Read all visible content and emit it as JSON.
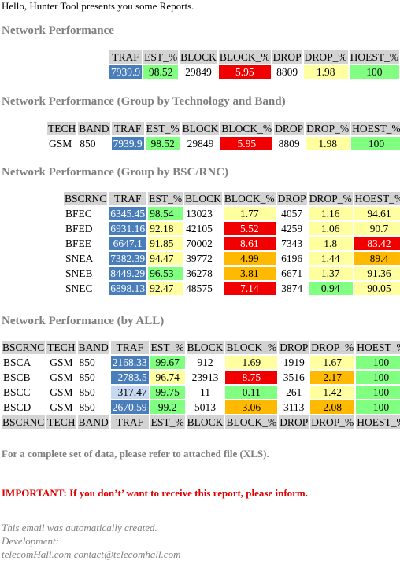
{
  "greeting": "Hello, Hunter Tool presents you some Reports.",
  "sections": {
    "s1": {
      "title": "Network Performance",
      "headers": [
        "TRAF",
        "EST_%",
        "BLOCK",
        "BLOCK_%",
        "DROP",
        "DROP_%",
        "HOEST_%"
      ],
      "row": [
        "7939.9",
        "98.52",
        "29849",
        "5.95",
        "8809",
        "1.98",
        "100"
      ]
    },
    "s2": {
      "title": "Network Performance (Group by Technology and Band)",
      "headers": [
        "TECH",
        "BAND",
        "TRAF",
        "EST_%",
        "BLOCK",
        "BLOCK_%",
        "DROP",
        "DROP_%",
        "HOEST_%"
      ],
      "row": [
        "GSM",
        "850",
        "7939.9",
        "98.52",
        "29849",
        "5.95",
        "8809",
        "1.98",
        "100"
      ]
    },
    "s3": {
      "title": "Network Performance (Group by BSC/RNC)",
      "headers": [
        "BSCRNC",
        "TRAF",
        "EST_%",
        "BLOCK",
        "BLOCK_%",
        "DROP",
        "DROP_%",
        "HOEST_%"
      ],
      "rows": [
        [
          "BFEC",
          "6345.45",
          "98.54",
          "13023",
          "1.77",
          "4057",
          "1.16",
          "94.61"
        ],
        [
          "BFED",
          "6931.16",
          "92.18",
          "42105",
          "5.52",
          "4259",
          "1.06",
          "90.7"
        ],
        [
          "BFEE",
          "6647.1",
          "91.85",
          "70002",
          "8.61",
          "7343",
          "1.8",
          "83.42"
        ],
        [
          "SNEA",
          "7382.39",
          "94.47",
          "39772",
          "4.99",
          "6196",
          "1.44",
          "89.4"
        ],
        [
          "SNEB",
          "8449.29",
          "96.53",
          "36278",
          "3.81",
          "6671",
          "1.37",
          "91.36"
        ],
        [
          "SNEC",
          "6898.13",
          "92.47",
          "48575",
          "7.14",
          "3874",
          "0.94",
          "90.05"
        ]
      ]
    },
    "s4": {
      "title": "Network Performance (by ALL)",
      "headers": [
        "BSCRNC",
        "TECH",
        "BAND",
        "TRAF",
        "EST_%",
        "BLOCK",
        "BLOCK_%",
        "DROP",
        "DROP_%",
        "HOEST_%"
      ],
      "rows": [
        [
          "BSCA",
          "GSM",
          "850",
          "2168.33",
          "99.67",
          "912",
          "1.69",
          "1919",
          "1.67",
          "100"
        ],
        [
          "BSCB",
          "GSM",
          "850",
          "2783.5",
          "96.74",
          "23913",
          "8.75",
          "3516",
          "2.17",
          "100"
        ],
        [
          "BSCC",
          "GSM",
          "850",
          "317.47",
          "99.75",
          "11",
          "0.11",
          "261",
          "1.42",
          "100"
        ],
        [
          "BSCD",
          "GSM",
          "850",
          "2670.59",
          "99.2",
          "5013",
          "3.06",
          "3113",
          "2.08",
          "100"
        ]
      ]
    }
  },
  "note": "For a complete set of data, please refer to attached file (XLS).",
  "important": "IMPORTANT: If you don’t’ want to receive this report, please inform.",
  "footer": {
    "line1": "This email was automatically created.",
    "line2": "Development:",
    "line3": "telecomHall.com contact@telecomhall.com"
  }
}
